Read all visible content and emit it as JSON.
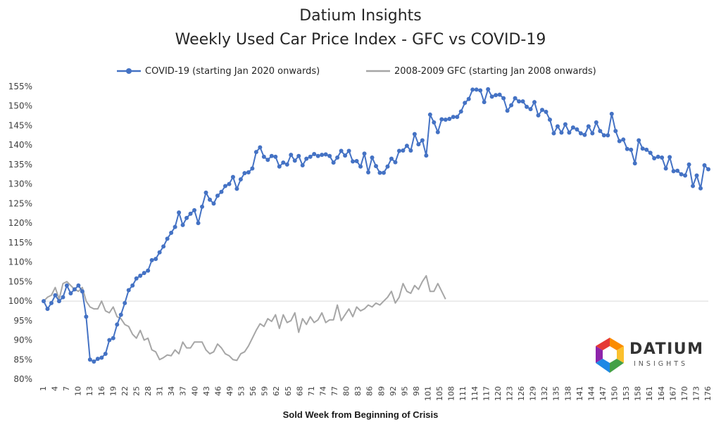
{
  "chart_data": {
    "type": "line",
    "title": "Datium Insights",
    "subtitle": "Weekly Used Car Price Index - GFC vs COVID-19",
    "xlabel": "Sold Week from Beginning of Crisis",
    "ylabel": "",
    "ylim": [
      80,
      155
    ],
    "yticks": [
      "80%",
      "85%",
      "90%",
      "95%",
      "100%",
      "105%",
      "110%",
      "115%",
      "120%",
      "125%",
      "130%",
      "135%",
      "140%",
      "145%",
      "150%",
      "155%"
    ],
    "xticks": [
      "1",
      "4",
      "7",
      "10",
      "13",
      "16",
      "19",
      "22",
      "25",
      "28",
      "31",
      "34",
      "37",
      "40",
      "43",
      "46",
      "49",
      "53",
      "56",
      "59",
      "62",
      "65",
      "68",
      "71",
      "74",
      "77",
      "80",
      "83",
      "86",
      "89",
      "92",
      "95",
      "98",
      "101",
      "105",
      "108",
      "111",
      "114",
      "117",
      "120",
      "123",
      "126",
      "129",
      "132",
      "135",
      "138",
      "141",
      "144",
      "147",
      "150",
      "153",
      "158",
      "161",
      "164",
      "167",
      "170",
      "173",
      "176"
    ],
    "grid": false,
    "legend_position": "top",
    "reference_line": 100,
    "series": [
      {
        "name": "COVID-19 (starting Jan 2020 onwards)",
        "color": "#4472c4",
        "marker": "circle",
        "values": [
          100.0,
          98.0,
          99.5,
          101.5,
          100.0,
          101.0,
          104.0,
          102.0,
          103.0,
          104.0,
          102.5,
          96.0,
          85.0,
          84.5,
          85.2,
          85.5,
          86.5,
          90.0,
          90.5,
          94.0,
          96.5,
          99.5,
          102.8,
          104.0,
          105.8,
          106.5,
          107.2,
          107.8,
          110.5,
          110.8,
          112.5,
          114.0,
          116.0,
          117.5,
          119.0,
          122.7,
          119.5,
          121.3,
          122.4,
          123.3,
          120.0,
          124.2,
          127.8,
          126.0,
          125.0,
          127.0,
          128.0,
          129.5,
          130.0,
          131.8,
          128.8,
          131.2,
          132.8,
          133.0,
          134.0,
          138.2,
          139.4,
          137.0,
          136.2,
          137.2,
          137.0,
          134.5,
          135.5,
          135.0,
          137.5,
          136.0,
          137.2,
          134.8,
          136.5,
          137.0,
          137.7,
          137.2,
          137.5,
          137.6,
          137.2,
          135.5,
          136.8,
          138.5,
          137.3,
          138.5,
          135.8,
          135.9,
          134.5,
          137.8,
          133.0,
          136.8,
          134.6,
          132.9,
          132.9,
          134.5,
          136.5,
          135.6,
          138.5,
          138.6,
          139.8,
          138.6,
          142.8,
          140.2,
          141.2,
          137.3,
          147.8,
          145.8,
          143.3,
          146.6,
          146.5,
          146.7,
          147.2,
          147.2,
          148.6,
          150.8,
          151.8,
          154.2,
          154.2,
          154.0,
          151.0,
          154.3,
          152.4,
          152.8,
          152.9,
          152.0,
          148.8,
          150.2,
          152.0,
          151.2,
          151.2,
          149.8,
          149.2,
          151.0,
          147.6,
          149.0,
          148.5,
          146.5,
          143.0,
          144.8,
          143.2,
          145.3,
          143.2,
          144.5,
          144.0,
          143.0,
          142.6,
          144.8,
          143.0,
          145.8,
          143.6,
          142.5,
          142.5,
          148.0,
          143.6,
          141.0,
          141.4,
          139.0,
          138.8,
          135.3,
          141.2,
          139.1,
          138.8,
          138.0,
          136.6,
          137.0,
          136.8,
          134.0,
          136.9,
          133.3,
          133.4,
          132.5,
          132.2,
          135.0,
          129.5,
          132.2,
          128.9,
          134.8,
          133.8
        ]
      },
      {
        "name": "2008-2009 GFC (starting Jan 2008 onwards)",
        "color": "#a6a6a6",
        "marker": "none",
        "values": [
          100.0,
          101.0,
          101.5,
          103.5,
          100.5,
          104.5,
          105.0,
          104.0,
          103.0,
          102.5,
          103.5,
          100.0,
          98.5,
          98.0,
          98.0,
          100.0,
          97.5,
          97.0,
          98.5,
          96.0,
          95.5,
          94.0,
          93.5,
          91.5,
          90.5,
          92.5,
          90.0,
          90.5,
          87.5,
          87.0,
          85.0,
          85.5,
          86.2,
          86.0,
          87.5,
          86.5,
          89.5,
          88.0,
          88.0,
          89.5,
          89.5,
          89.5,
          87.5,
          86.5,
          87.0,
          89.0,
          88.0,
          86.5,
          86.0,
          85.0,
          84.8,
          86.5,
          87.0,
          88.5,
          90.5,
          92.5,
          94.2,
          93.5,
          95.5,
          94.8,
          96.5,
          93.0,
          96.5,
          94.5,
          95.0,
          97.0,
          92.0,
          95.5,
          94.0,
          96.0,
          94.5,
          95.2,
          97.0,
          94.5,
          95.2,
          95.2,
          99.0,
          95.0,
          96.5,
          98.0,
          96.0,
          98.5,
          97.5,
          98.0,
          99.0,
          98.5,
          99.5,
          99.0,
          100.0,
          101.0,
          102.5,
          99.5,
          101.0,
          104.5,
          102.5,
          102.0,
          104.0,
          103.0,
          105.0,
          106.5,
          102.5,
          102.5,
          104.5,
          102.5,
          100.5
        ]
      }
    ]
  },
  "logo": {
    "name": "DATIUM",
    "tagline": "INSIGHTS",
    "colors": [
      "#e53935",
      "#fbc02d",
      "#43a047",
      "#1e88e5",
      "#8e24aa",
      "#fb8c00"
    ]
  }
}
